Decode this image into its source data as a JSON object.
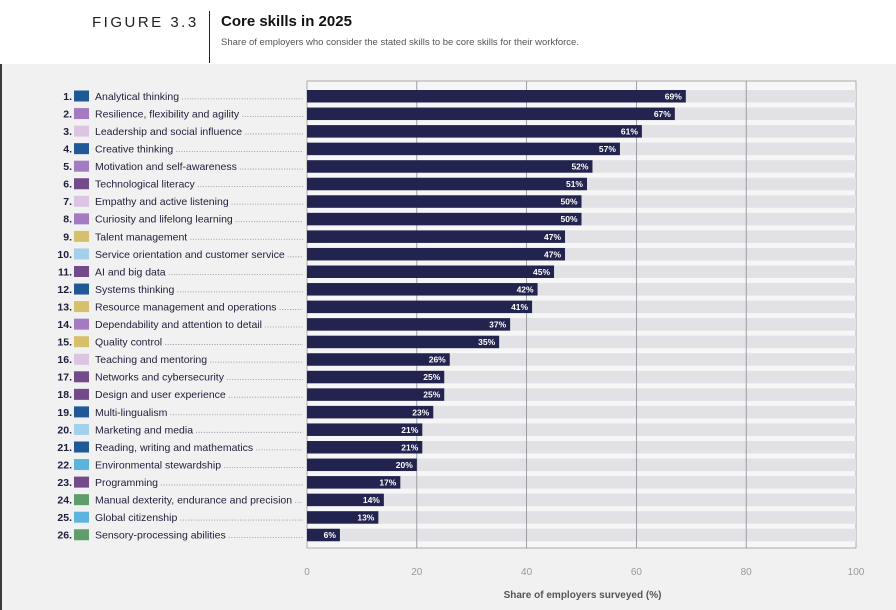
{
  "header": {
    "figure_label": "FIGURE 3.3",
    "title": "Core skills in 2025",
    "subtitle": "Share of employers who consider the stated skills to be core skills for their workforce."
  },
  "chart_data": {
    "type": "bar",
    "orientation": "horizontal",
    "xlabel": "Share of employers surveyed (%)",
    "xlim": [
      0,
      100
    ],
    "xticks": [
      0,
      20,
      40,
      60,
      80,
      100
    ],
    "grid": true,
    "bar_color": "#23234f",
    "track_color": "#e2e2e6",
    "value_suffix": "%",
    "categories": [
      {
        "rank": "1.",
        "label": "Analytical thinking",
        "value": 69,
        "color": "#1f5a96"
      },
      {
        "rank": "2.",
        "label": "Resilience, flexibility and agility",
        "value": 67,
        "color": "#a47bc2"
      },
      {
        "rank": "3.",
        "label": "Leadership and social influence",
        "value": 61,
        "color": "#dbc5e2"
      },
      {
        "rank": "4.",
        "label": "Creative thinking",
        "value": 57,
        "color": "#1f5a96"
      },
      {
        "rank": "5.",
        "label": "Motivation and self-awareness",
        "value": 52,
        "color": "#a47bc2"
      },
      {
        "rank": "6.",
        "label": "Technological literacy",
        "value": 51,
        "color": "#734a8a"
      },
      {
        "rank": "7.",
        "label": "Empathy and active listening",
        "value": 50,
        "color": "#dbc5e2"
      },
      {
        "rank": "8.",
        "label": "Curiosity and lifelong learning",
        "value": 50,
        "color": "#a47bc2"
      },
      {
        "rank": "9.",
        "label": "Talent management",
        "value": 47,
        "color": "#d6c06c"
      },
      {
        "rank": "10.",
        "label": "Service orientation and customer service",
        "value": 47,
        "color": "#a3d1ec"
      },
      {
        "rank": "11.",
        "label": "AI and big data",
        "value": 45,
        "color": "#734a8a"
      },
      {
        "rank": "12.",
        "label": "Systems thinking",
        "value": 42,
        "color": "#1f5a96"
      },
      {
        "rank": "13.",
        "label": "Resource management and operations",
        "value": 41,
        "color": "#d6c06c"
      },
      {
        "rank": "14.",
        "label": "Dependability and attention to detail",
        "value": 37,
        "color": "#a47bc2"
      },
      {
        "rank": "15.",
        "label": "Quality control",
        "value": 35,
        "color": "#d6c06c"
      },
      {
        "rank": "16.",
        "label": "Teaching and mentoring",
        "value": 26,
        "color": "#dbc5e2"
      },
      {
        "rank": "17.",
        "label": "Networks and cybersecurity",
        "value": 25,
        "color": "#734a8a"
      },
      {
        "rank": "18.",
        "label": "Design and user experience",
        "value": 25,
        "color": "#734a8a"
      },
      {
        "rank": "19.",
        "label": "Multi-lingualism",
        "value": 23,
        "color": "#1f5a96"
      },
      {
        "rank": "20.",
        "label": "Marketing and media",
        "value": 21,
        "color": "#a3d1ec"
      },
      {
        "rank": "21.",
        "label": "Reading, writing and mathematics",
        "value": 21,
        "color": "#1f5a96"
      },
      {
        "rank": "22.",
        "label": "Environmental stewardship",
        "value": 20,
        "color": "#5ab4de"
      },
      {
        "rank": "23.",
        "label": "Programming",
        "value": 17,
        "color": "#734a8a"
      },
      {
        "rank": "24.",
        "label": "Manual dexterity, endurance and precision",
        "value": 14,
        "color": "#5f9e6a"
      },
      {
        "rank": "25.",
        "label": "Global citizenship",
        "value": 13,
        "color": "#5ab4de"
      },
      {
        "rank": "26.",
        "label": "Sensory-processing abilities",
        "value": 6,
        "color": "#5f9e6a"
      }
    ]
  }
}
